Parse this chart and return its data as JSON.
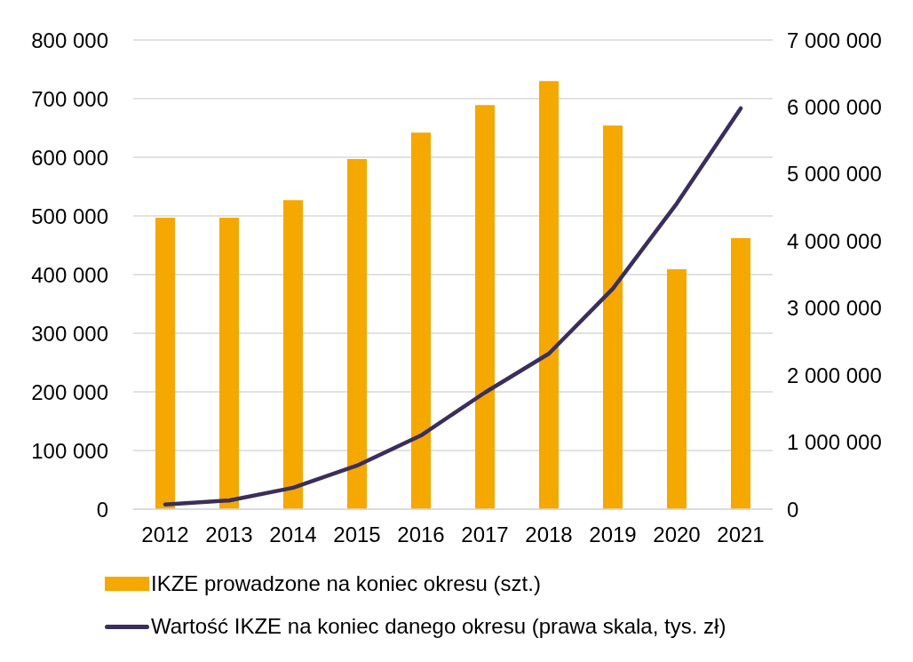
{
  "chart_data": {
    "type": "bar",
    "categories": [
      "2012",
      "2013",
      "2014",
      "2015",
      "2016",
      "2017",
      "2018",
      "2019",
      "2020",
      "2021"
    ],
    "series": [
      {
        "name": "IKZE prowadzone na koniec okresu (szt.)",
        "color": "#f5a800",
        "values": [
          497000,
          497000,
          527000,
          597000,
          642000,
          689000,
          730000,
          654000,
          409000,
          462000
        ]
      },
      {
        "name": "Wartość IKZE na koniec danego okresu (prawa skala, tys. zł)",
        "type": "line",
        "axis": "y2",
        "color": "#3b2e5a",
        "values": [
          70000,
          130000,
          320000,
          650000,
          1100000,
          1740000,
          2320000,
          3290000,
          4560000,
          5980000
        ]
      }
    ],
    "ylim": [
      0,
      800000
    ],
    "yticks": [
      {
        "value": 0,
        "label": "0"
      },
      {
        "value": 100000,
        "label": "100 000"
      },
      {
        "value": 200000,
        "label": "200 000"
      },
      {
        "value": 300000,
        "label": "300 000"
      },
      {
        "value": 400000,
        "label": "400 000"
      },
      {
        "value": 500000,
        "label": "500 000"
      },
      {
        "value": 600000,
        "label": "600 000"
      },
      {
        "value": 700000,
        "label": "700 000"
      },
      {
        "value": 800000,
        "label": "800 000"
      }
    ],
    "y2lim": [
      0,
      7000000
    ],
    "y2ticks": [
      {
        "value": 0,
        "label": "0"
      },
      {
        "value": 1000000,
        "label": "1 000 000"
      },
      {
        "value": 2000000,
        "label": "2 000 000"
      },
      {
        "value": 3000000,
        "label": "3 000 000"
      },
      {
        "value": 4000000,
        "label": "4 000 000"
      },
      {
        "value": 5000000,
        "label": "5 000 000"
      },
      {
        "value": 6000000,
        "label": "6 000 000"
      },
      {
        "value": 7000000,
        "label": "7 000 000"
      }
    ],
    "grid": "y",
    "legend": "bottom",
    "marker": "none",
    "line_style": "solid"
  }
}
